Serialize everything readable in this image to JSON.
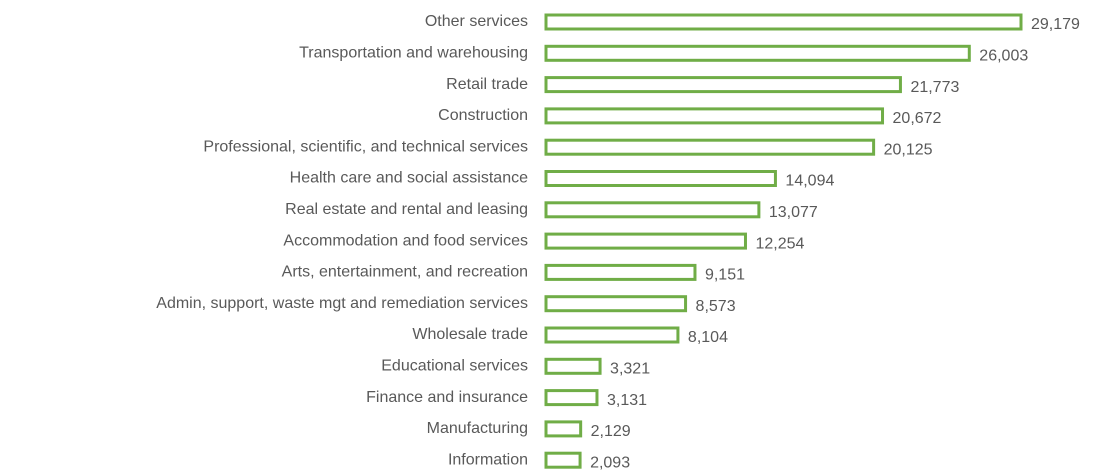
{
  "chart_data": {
    "type": "bar",
    "orientation": "horizontal",
    "color": "#70ad47",
    "categories": [
      "Other services",
      "Transportation and warehousing",
      "Retail trade",
      "Construction",
      "Professional, scientific, and technical services",
      "Health care and social assistance",
      "Real estate and rental and leasing",
      "Accommodation and food services",
      "Arts, entertainment, and recreation",
      "Admin, support, waste mgt and remediation services",
      "Wholesale trade",
      "Educational services",
      "Finance and insurance",
      "Manufacturing",
      "Information"
    ],
    "values": [
      29179,
      26003,
      21773,
      20672,
      20125,
      14094,
      13077,
      12254,
      9151,
      8573,
      8104,
      3321,
      3131,
      2129,
      2093
    ],
    "value_labels": [
      "29,179",
      "26,003",
      "21,773",
      "20,672",
      "20,125",
      "14,094",
      "13,077",
      "12,254",
      "9,151",
      "8,573",
      "8,104",
      "3,321",
      "3,131",
      "2,129",
      "2,093"
    ]
  }
}
